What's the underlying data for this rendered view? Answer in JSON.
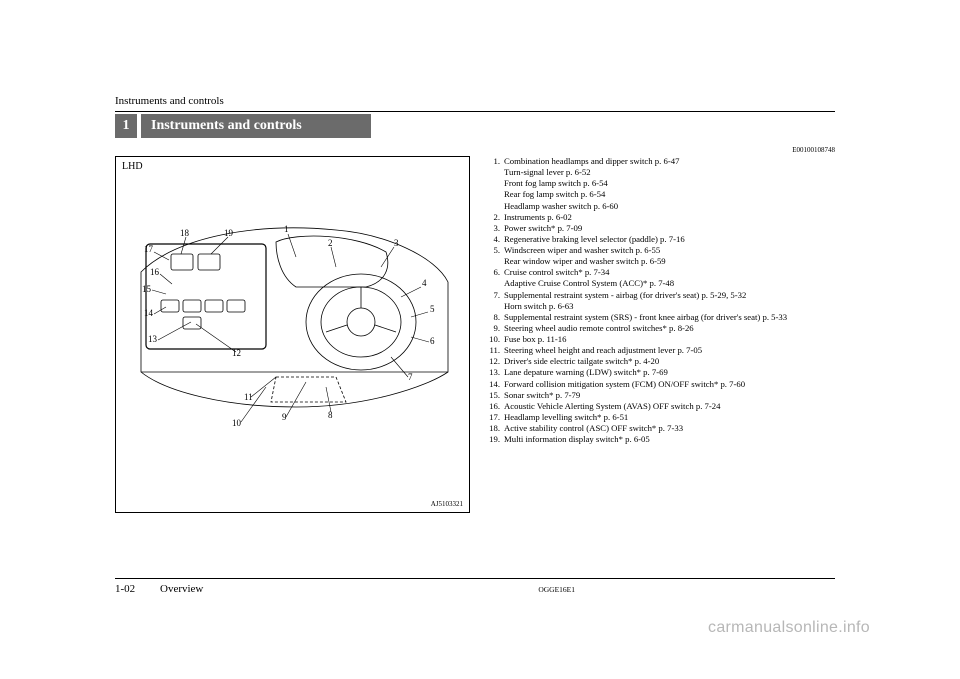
{
  "running_header": "Instruments and controls",
  "chapter_number": "1",
  "title": "Instruments and controls",
  "doc_id": "E00100108748",
  "figure": {
    "lhd": "LHD",
    "fig_id": "AJ5103321",
    "callouts": {
      "c1": "1",
      "c2": "2",
      "c3": "3",
      "c4": "4",
      "c5": "5",
      "c6": "6",
      "c7": "7",
      "c8": "8",
      "c9": "9",
      "c10": "10",
      "c11": "11",
      "c12": "12",
      "c13": "13",
      "c14": "14",
      "c15": "15",
      "c16": "16",
      "c17": "17",
      "c18": "18",
      "c19": "19"
    }
  },
  "list": [
    {
      "n": "1.",
      "t": "Combination headlamps and dipper switch p. 6-47",
      "subs": [
        "Turn-signal lever p. 6-52",
        "Front fog lamp switch p. 6-54",
        "Rear fog lamp switch p. 6-54",
        "Headlamp washer switch p. 6-60"
      ]
    },
    {
      "n": "2.",
      "t": "Instruments p. 6-02"
    },
    {
      "n": "3.",
      "t": "Power switch* p. 7-09"
    },
    {
      "n": "4.",
      "t": "Regenerative braking level selector (paddle) p. 7-16"
    },
    {
      "n": "5.",
      "t": "Windscreen wiper and washer switch p. 6-55",
      "subs": [
        "Rear window wiper and washer switch p. 6-59"
      ]
    },
    {
      "n": "6.",
      "t": "Cruise control switch* p. 7-34",
      "subs": [
        "Adaptive Cruise Control System (ACC)* p. 7-48"
      ]
    },
    {
      "n": "7.",
      "t": "Supplemental restraint system - airbag (for driver's seat) p. 5-29, 5-32",
      "subs": [
        "Horn switch p. 6-63"
      ]
    },
    {
      "n": "8.",
      "t": "Supplemental restraint system (SRS) - front knee airbag (for driver's seat) p. 5-33"
    },
    {
      "n": "9.",
      "t": "Steering wheel audio remote control switches* p. 8-26"
    },
    {
      "n": "10.",
      "t": "Fuse box p. 11-16"
    },
    {
      "n": "11.",
      "t": "Steering wheel height and reach adjustment lever p. 7-05"
    },
    {
      "n": "12.",
      "t": "Driver's side electric tailgate switch* p. 4-20"
    },
    {
      "n": "13.",
      "t": "Lane depature warning (LDW) switch* p. 7-69"
    },
    {
      "n": "14.",
      "t": "Forward collision mitigation system (FCM) ON/OFF switch* p. 7-60"
    },
    {
      "n": "15.",
      "t": "Sonar switch* p. 7-79"
    },
    {
      "n": "16.",
      "t": "Acoustic Vehicle Alerting System (AVAS) OFF switch p. 7-24"
    },
    {
      "n": "17.",
      "t": "Headlamp levelling switch* p. 6-51"
    },
    {
      "n": "18.",
      "t": "Active stability control (ASC) OFF switch* p. 7-33"
    },
    {
      "n": "19.",
      "t": "Multi information display switch* p. 6-05"
    }
  ],
  "footer": {
    "pagenum": "1-02",
    "section": "Overview",
    "doccode": "OGGE16E1"
  },
  "watermark": "carmanualsonline.info",
  "colors": {
    "bar_bg": "#6b6b6b",
    "bar_fg": "#ffffff",
    "text": "#000000",
    "watermark": "#b7b7b7"
  }
}
